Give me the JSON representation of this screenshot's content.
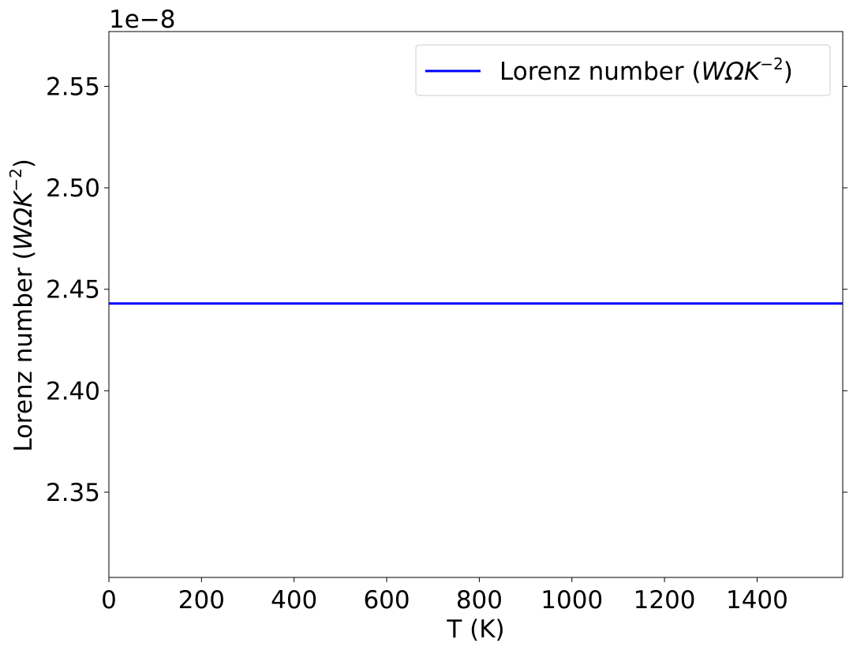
{
  "chart_data": {
    "type": "line",
    "xlabel": "T (K)",
    "ylabel_main": "Lorenz number (",
    "ylabel_math": "WΩK",
    "ylabel_exp": "−2",
    "ylabel_close": ")",
    "offset_text": "1e−8",
    "xlim": [
      0,
      1585
    ],
    "ylim": [
      2.308,
      2.577
    ],
    "xticks": [
      0,
      200,
      400,
      600,
      800,
      1000,
      1200,
      1400
    ],
    "xtick_labels": [
      "0",
      "200",
      "400",
      "600",
      "800",
      "1000",
      "1200",
      "1400"
    ],
    "yticks": [
      2.35,
      2.4,
      2.45,
      2.5,
      2.55
    ],
    "ytick_labels": [
      "2.35",
      "2.40",
      "2.45",
      "2.50",
      "2.55"
    ],
    "grid": false,
    "legend_placement": "top-right",
    "series": [
      {
        "name_main": "Lorenz number (",
        "name_math": "WΩK",
        "name_exp": "−2",
        "name_close": ")",
        "color": "#0000ff",
        "x": [
          0,
          1585
        ],
        "y": [
          2.443,
          2.443
        ]
      }
    ]
  }
}
